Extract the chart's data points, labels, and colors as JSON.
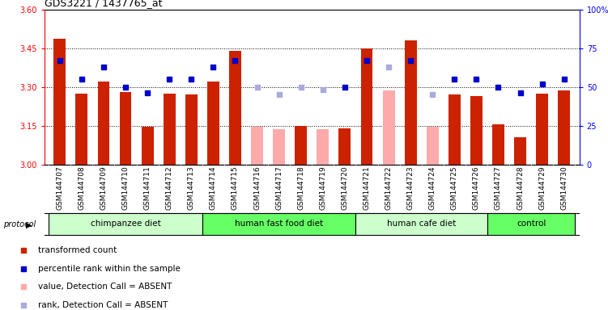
{
  "title": "GDS3221 / 1437765_at",
  "samples": [
    "GSM144707",
    "GSM144708",
    "GSM144709",
    "GSM144710",
    "GSM144711",
    "GSM144712",
    "GSM144713",
    "GSM144714",
    "GSM144715",
    "GSM144716",
    "GSM144717",
    "GSM144718",
    "GSM144719",
    "GSM144720",
    "GSM144721",
    "GSM144722",
    "GSM144723",
    "GSM144724",
    "GSM144725",
    "GSM144726",
    "GSM144727",
    "GSM144728",
    "GSM144729",
    "GSM144730"
  ],
  "transformed_count": [
    3.485,
    3.275,
    3.32,
    3.28,
    3.145,
    3.275,
    3.27,
    3.32,
    3.44,
    3.145,
    3.135,
    3.15,
    3.135,
    3.14,
    3.45,
    3.285,
    3.48,
    3.145,
    3.27,
    3.265,
    3.155,
    3.105,
    3.275,
    3.285
  ],
  "percentile_rank": [
    67,
    55,
    63,
    50,
    46,
    55,
    55,
    63,
    67,
    50,
    45,
    50,
    48,
    50,
    67,
    63,
    67,
    45,
    55,
    55,
    50,
    46,
    52,
    55
  ],
  "absent_value": [
    false,
    false,
    false,
    false,
    false,
    false,
    false,
    false,
    false,
    true,
    true,
    false,
    true,
    false,
    false,
    true,
    false,
    true,
    false,
    false,
    false,
    false,
    false,
    false
  ],
  "absent_rank": [
    false,
    false,
    false,
    false,
    false,
    false,
    false,
    false,
    false,
    true,
    true,
    true,
    true,
    false,
    false,
    true,
    false,
    true,
    false,
    false,
    false,
    false,
    false,
    false
  ],
  "groups": [
    {
      "label": "chimpanzee diet",
      "start": 0,
      "end": 6,
      "color": "#ccffcc"
    },
    {
      "label": "human fast food diet",
      "start": 7,
      "end": 13,
      "color": "#66ff66"
    },
    {
      "label": "human cafe diet",
      "start": 14,
      "end": 19,
      "color": "#ccffcc"
    },
    {
      "label": "control",
      "start": 20,
      "end": 23,
      "color": "#66ff66"
    }
  ],
  "ylim_left": [
    3.0,
    3.6
  ],
  "ylim_right": [
    0,
    100
  ],
  "yticks_left": [
    3.0,
    3.15,
    3.3,
    3.45,
    3.6
  ],
  "yticks_right": [
    0,
    25,
    50,
    75,
    100
  ],
  "bar_color_present": "#cc2200",
  "bar_color_absent": "#ffaaaa",
  "dot_color_present": "#0000cc",
  "dot_color_absent": "#aaaadd",
  "bar_width": 0.55,
  "xtick_bg": "#cccccc"
}
